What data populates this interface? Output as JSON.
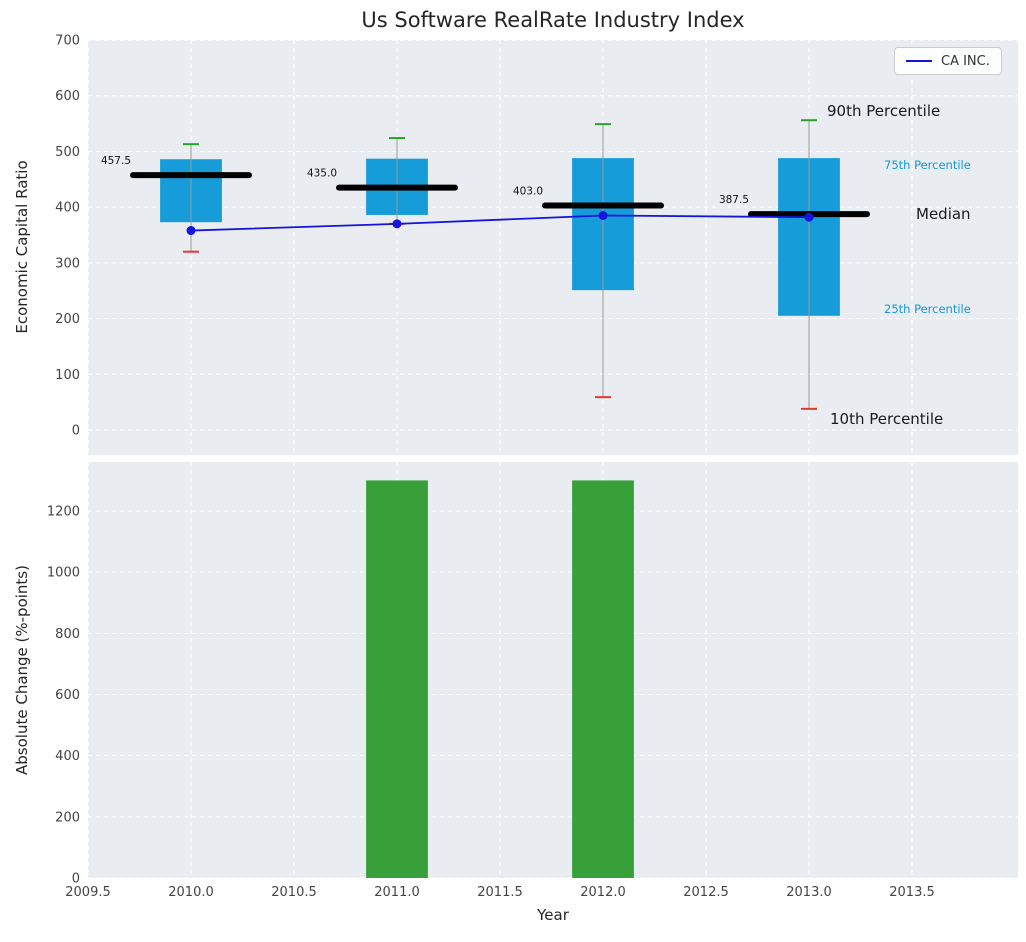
{
  "chart_data": [
    {
      "type": "box",
      "title": "Us Software RealRate Industry Index",
      "ylabel": "Economic Capital Ratio",
      "ylim": [
        -45,
        700
      ],
      "yticks": [
        0,
        100,
        200,
        300,
        400,
        500,
        600,
        700
      ],
      "grid": true,
      "legend": {
        "label": "CA INC.",
        "position": "upper right"
      },
      "series": [
        {
          "name": "CA INC.",
          "x": [
            2010,
            2011,
            2012,
            2013
          ],
          "values": [
            358,
            370,
            385,
            382
          ]
        }
      ],
      "boxes": [
        {
          "x": 2010,
          "p10": 320,
          "p25": 373,
          "median": 457.5,
          "p75": 486,
          "p90": 513,
          "median_label": "457.5"
        },
        {
          "x": 2011,
          "p10": 370,
          "p25": 386,
          "median": 435.0,
          "p75": 487,
          "p90": 524,
          "median_label": "435.0"
        },
        {
          "x": 2012,
          "p10": 59,
          "p25": 251,
          "median": 403.0,
          "p75": 488,
          "p90": 549,
          "median_label": "403.0"
        },
        {
          "x": 2013,
          "p10": 38,
          "p25": 205,
          "median": 387.5,
          "p75": 488,
          "p90": 556,
          "median_label": "387.5"
        }
      ],
      "annotations": [
        {
          "text": "90th Percentile",
          "color": "#1a1a1a"
        },
        {
          "text": "75th Percentile",
          "color": "#1699d1"
        },
        {
          "text": "Median",
          "color": "#1a1a1a"
        },
        {
          "text": "25th Percentile",
          "color": "#1699d1"
        },
        {
          "text": "10th Percentile",
          "color": "#1a1a1a"
        }
      ]
    },
    {
      "type": "bar",
      "xlabel": "Year",
      "ylabel": "Absolute Change (%-points)",
      "ylim": [
        0,
        1360
      ],
      "yticks": [
        0,
        200,
        400,
        600,
        800,
        1000,
        1200
      ],
      "xticks": [
        "2009.5",
        "2010.0",
        "2010.5",
        "2011.0",
        "2011.5",
        "2012.0",
        "2012.5",
        "2013.0",
        "2013.5"
      ],
      "categories": [
        2011,
        2012
      ],
      "values": [
        1300,
        1300
      ],
      "bar_width": 0.3
    }
  ],
  "colors": {
    "panel_bg": "#e9edf1",
    "grid": "#ffffff",
    "box_fill": "#169cd8",
    "median": "#000000",
    "whisker": "#999999",
    "p90_cap": "#2ca02c",
    "p10_cap": "#e03a2f",
    "line": "#1414dc",
    "bar": "#38a038",
    "tick_label": "#444444",
    "median_label": "#111111"
  }
}
